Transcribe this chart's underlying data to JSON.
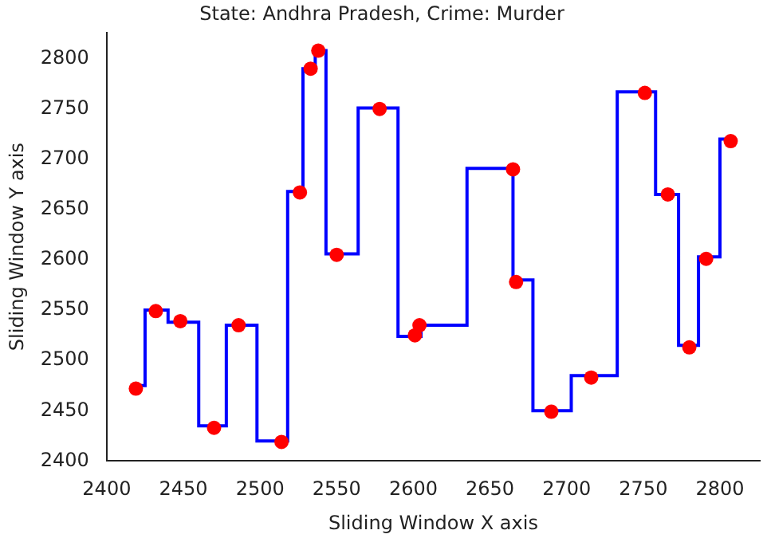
{
  "chart_data": {
    "type": "scatter",
    "title": "State: Andhra Pradesh, Crime: Murder",
    "xlabel": "Sliding Window X axis",
    "ylabel": "Sliding Window Y axis",
    "xlim": [
      2400,
      2826
    ],
    "ylim": [
      2400,
      2826
    ],
    "xticks": [
      2400,
      2450,
      2500,
      2550,
      2600,
      2650,
      2700,
      2750,
      2800
    ],
    "yticks": [
      2400,
      2450,
      2500,
      2550,
      2600,
      2650,
      2700,
      2750,
      2800
    ],
    "grid": false,
    "legend": false,
    "series": [
      {
        "type": "step",
        "color": "#0000ff",
        "marker": "none",
        "x": [
          2420,
          2425,
          2440,
          2460,
          2478,
          2498,
          2518,
          2528,
          2536,
          2543,
          2564,
          2590,
          2605,
          2635,
          2665,
          2678,
          2703,
          2733,
          2758,
          2773,
          2786,
          2800,
          2806
        ],
        "values": [
          2475,
          2550,
          2538,
          2435,
          2535,
          2420,
          2668,
          2790,
          2808,
          2606,
          2751,
          2524,
          2535,
          2691,
          2580,
          2450,
          2485,
          2767,
          2665,
          2515,
          2603,
          2720,
          2720
        ]
      },
      {
        "type": "scatter",
        "color": "#ff0000",
        "marker": "circle",
        "x": [
          2419,
          2432,
          2448,
          2470,
          2486,
          2514,
          2526,
          2533,
          2538,
          2550,
          2578,
          2601,
          2604,
          2665,
          2667,
          2690,
          2716,
          2751,
          2766,
          2780,
          2791,
          2807
        ],
        "values": [
          2472,
          2549,
          2539,
          2433,
          2535,
          2419,
          2667,
          2790,
          2808,
          2605,
          2750,
          2525,
          2535,
          2690,
          2578,
          2449,
          2483,
          2766,
          2665,
          2513,
          2601,
          2718
        ]
      }
    ]
  }
}
